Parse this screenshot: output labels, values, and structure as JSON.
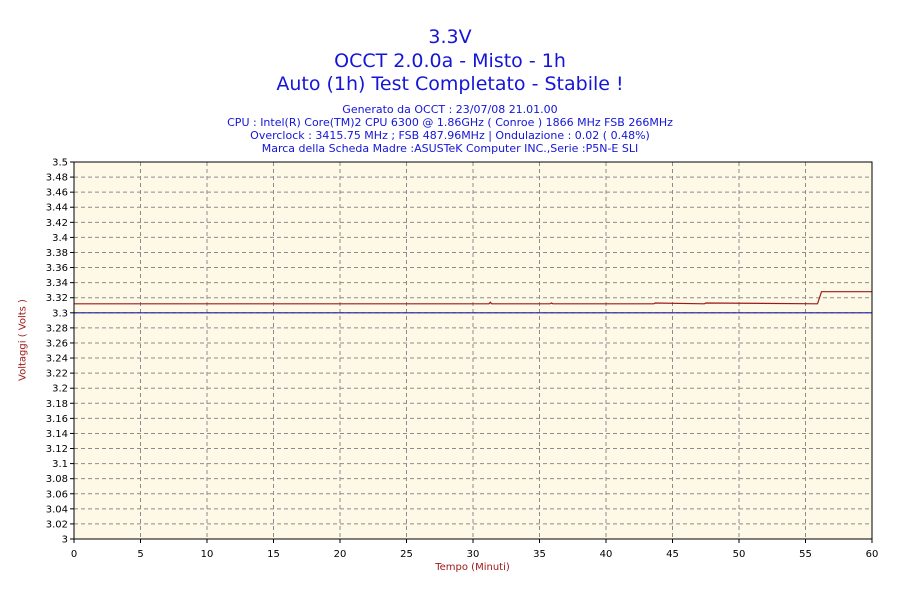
{
  "header": {
    "title": "3.3V",
    "subtitle1": "OCCT 2.0.0a - Misto - 1h",
    "subtitle2": "Auto (1h) Test Completato - Stabile !"
  },
  "info": {
    "generated": "Generato da OCCT : 23/07/08 21.01.00",
    "cpu": "CPU : Intel(R) Core(TM)2 CPU 6300 @ 1.86GHz ( Conroe ) 1866 MHz FSB 266MHz",
    "overclock": "Overclock : 3415.75 MHz ; FSB 487.96MHz | Ondulazione : 0.02 ( 0.48%)",
    "motherboard": "Marca della Scheda Madre :ASUSTeK Computer INC.,Serie :P5N-E SLI"
  },
  "colors": {
    "plot_bg": "#fdf9e6",
    "grid": "#8c8c8c",
    "measured_line": "#9b1b1b",
    "reference_line": "#1e1e9a",
    "title": "#1515d8",
    "axis_label": "#a01818"
  },
  "chart_data": {
    "type": "line",
    "xlabel": "Tempo (Minuti)",
    "ylabel": "Voltaggi ( Volts )",
    "xlim": [
      0,
      60
    ],
    "ylim": [
      3.0,
      3.5
    ],
    "x_ticks": [
      0,
      5,
      10,
      15,
      20,
      25,
      30,
      35,
      40,
      45,
      50,
      55,
      60
    ],
    "y_ticks": [
      "3",
      "3.02",
      "3.04",
      "3.06",
      "3.08",
      "3.1",
      "3.12",
      "3.14",
      "3.16",
      "3.18",
      "3.2",
      "3.22",
      "3.24",
      "3.26",
      "3.28",
      "3.3",
      "3.32",
      "3.34",
      "3.36",
      "3.38",
      "3.4",
      "3.42",
      "3.44",
      "3.46",
      "3.48",
      "3.5"
    ],
    "grid": true,
    "series": [
      {
        "x": [
          0,
          31.2,
          31.3,
          31.4,
          35.8,
          35.9,
          36.0,
          43.6,
          43.7,
          47.4,
          47.5,
          55.9,
          56.2,
          60
        ],
        "y": [
          3.312,
          3.312,
          3.314,
          3.312,
          3.312,
          3.313,
          3.312,
          3.312,
          3.313,
          3.312,
          3.313,
          3.312,
          3.328,
          3.328
        ]
      },
      {
        "x": [
          0,
          60
        ],
        "y": [
          3.3,
          3.3
        ]
      }
    ]
  }
}
